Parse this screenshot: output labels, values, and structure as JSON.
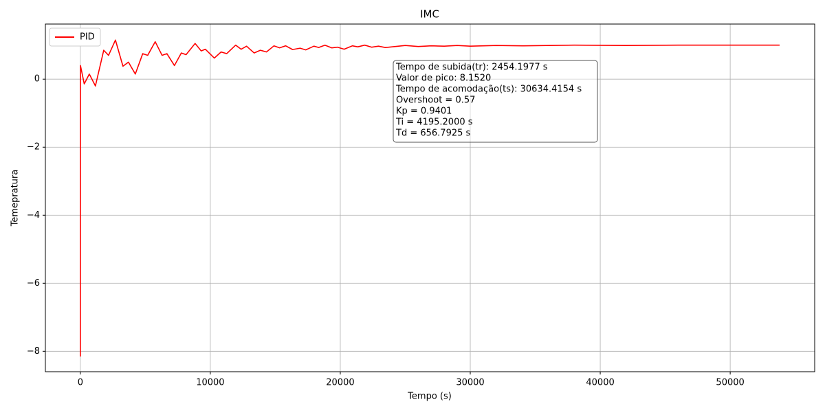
{
  "chart_data": {
    "type": "line",
    "title": "IMC",
    "xlabel": "Tempo (s)",
    "ylabel": "Temepratura",
    "x": [
      0,
      10,
      300,
      690,
      1160,
      1800,
      2170,
      2700,
      3280,
      3700,
      4230,
      4800,
      5180,
      5760,
      6290,
      6660,
      7240,
      7770,
      8140,
      8830,
      9300,
      9620,
      10310,
      10830,
      11260,
      11950,
      12370,
      12790,
      13370,
      13850,
      14320,
      14900,
      15330,
      15800,
      16330,
      16910,
      17340,
      17970,
      18340,
      18820,
      19340,
      19770,
      20300,
      20930,
      21350,
      21880,
      22410,
      22940,
      23470,
      25000,
      26000,
      27000,
      28000,
      29000,
      30000,
      32000,
      34000,
      38000,
      42000,
      46000,
      53800
    ],
    "series": [
      {
        "name": "PID",
        "color": "#ff0000",
        "values": [
          -8.15,
          0.4,
          -0.14,
          0.15,
          -0.2,
          0.85,
          0.7,
          1.15,
          0.38,
          0.5,
          0.15,
          0.75,
          0.7,
          1.1,
          0.7,
          0.75,
          0.4,
          0.77,
          0.72,
          1.05,
          0.83,
          0.88,
          0.62,
          0.8,
          0.75,
          1.0,
          0.88,
          0.97,
          0.77,
          0.85,
          0.8,
          0.98,
          0.92,
          0.98,
          0.87,
          0.91,
          0.86,
          0.97,
          0.93,
          1.0,
          0.92,
          0.94,
          0.88,
          0.98,
          0.95,
          1.0,
          0.94,
          0.97,
          0.93,
          0.99,
          0.96,
          0.98,
          0.97,
          0.99,
          0.97,
          0.99,
          0.98,
          1.0,
          0.99,
          1.0,
          1.0
        ]
      }
    ],
    "xlim": [
      -2690,
      56500
    ],
    "ylim": [
      -8.6,
      1.62
    ],
    "xticks": [
      0,
      10000,
      20000,
      30000,
      40000,
      50000
    ],
    "yticks": [
      {
        "value": -8,
        "label": "−8"
      },
      {
        "value": -6,
        "label": "−6"
      },
      {
        "value": -4,
        "label": "−4"
      },
      {
        "value": -2,
        "label": "−2"
      },
      0
    ],
    "grid": true,
    "legend": "upper left",
    "annotation": [
      "Tempo de subida(tr): 2454.1977 s",
      "Valor de pico: 8.1520",
      "Tempo de acomodação(ts): 30634.4154 s",
      "Overshoot = 0.57",
      "Kp = 0.9401",
      "Ti = 4195.2000 s",
      "Td = 656.7925 s"
    ]
  }
}
